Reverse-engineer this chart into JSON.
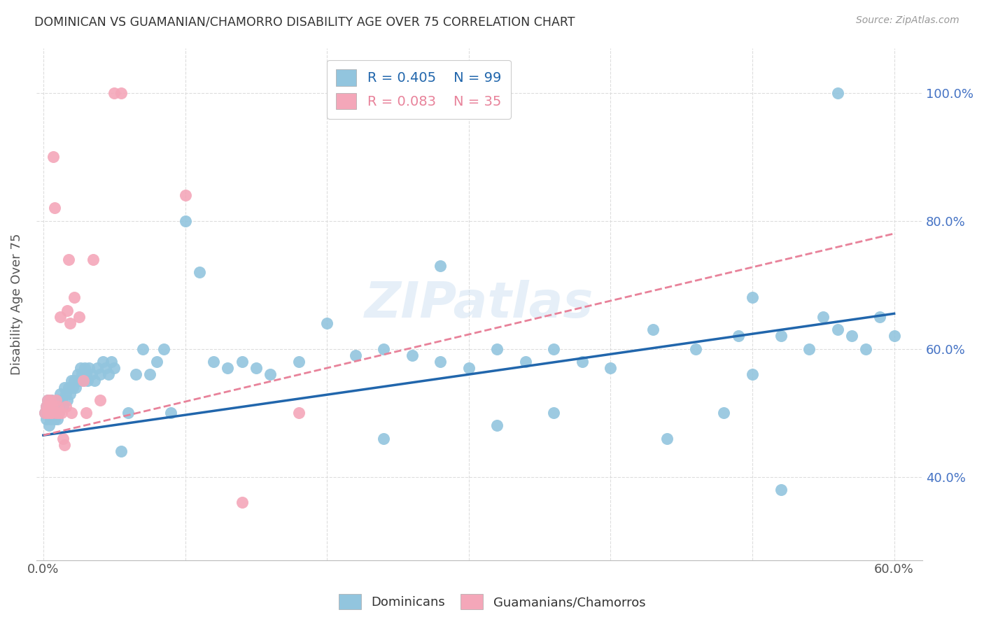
{
  "title": "DOMINICAN VS GUAMANIAN/CHAMORRO DISABILITY AGE OVER 75 CORRELATION CHART",
  "source": "Source: ZipAtlas.com",
  "ylabel": "Disability Age Over 75",
  "xlim": [
    -0.005,
    0.62
  ],
  "ylim": [
    0.27,
    1.07
  ],
  "xtick_pos": [
    0.0,
    0.1,
    0.2,
    0.3,
    0.4,
    0.5,
    0.6
  ],
  "xticklabels": [
    "0.0%",
    "",
    "",
    "",
    "",
    "",
    "60.0%"
  ],
  "ytick_pos": [
    0.4,
    0.6,
    0.8,
    1.0
  ],
  "yticklabels": [
    "40.0%",
    "60.0%",
    "80.0%",
    "100.0%"
  ],
  "blue_color": "#92c5de",
  "pink_color": "#f4a7b9",
  "blue_line_color": "#2166ac",
  "pink_line_color": "#e8829a",
  "watermark": "ZIPatlas",
  "legend_R1": "0.405",
  "legend_N1": "99",
  "legend_R2": "0.083",
  "legend_N2": "35",
  "blue_x": [
    0.001,
    0.002,
    0.002,
    0.003,
    0.003,
    0.004,
    0.004,
    0.005,
    0.005,
    0.006,
    0.006,
    0.007,
    0.007,
    0.008,
    0.008,
    0.009,
    0.009,
    0.01,
    0.01,
    0.011,
    0.011,
    0.012,
    0.013,
    0.014,
    0.015,
    0.016,
    0.017,
    0.018,
    0.019,
    0.02,
    0.021,
    0.022,
    0.023,
    0.024,
    0.025,
    0.026,
    0.027,
    0.028,
    0.029,
    0.03,
    0.031,
    0.032,
    0.034,
    0.036,
    0.038,
    0.04,
    0.042,
    0.044,
    0.046,
    0.048,
    0.05,
    0.055,
    0.06,
    0.065,
    0.07,
    0.075,
    0.08,
    0.085,
    0.09,
    0.1,
    0.11,
    0.12,
    0.13,
    0.14,
    0.15,
    0.16,
    0.18,
    0.2,
    0.22,
    0.24,
    0.26,
    0.28,
    0.3,
    0.32,
    0.34,
    0.36,
    0.38,
    0.4,
    0.43,
    0.46,
    0.49,
    0.5,
    0.52,
    0.54,
    0.55,
    0.56,
    0.57,
    0.58,
    0.59,
    0.6,
    0.28,
    0.32,
    0.24,
    0.36,
    0.44,
    0.48,
    0.5,
    0.52,
    0.56
  ],
  "blue_y": [
    0.5,
    0.49,
    0.51,
    0.5,
    0.52,
    0.48,
    0.5,
    0.5,
    0.49,
    0.51,
    0.52,
    0.5,
    0.5,
    0.49,
    0.51,
    0.5,
    0.5,
    0.52,
    0.49,
    0.51,
    0.5,
    0.53,
    0.52,
    0.51,
    0.54,
    0.53,
    0.52,
    0.54,
    0.53,
    0.55,
    0.54,
    0.55,
    0.54,
    0.56,
    0.55,
    0.57,
    0.56,
    0.55,
    0.57,
    0.56,
    0.55,
    0.57,
    0.56,
    0.55,
    0.57,
    0.56,
    0.58,
    0.57,
    0.56,
    0.58,
    0.57,
    0.44,
    0.5,
    0.56,
    0.6,
    0.56,
    0.58,
    0.6,
    0.5,
    0.8,
    0.72,
    0.58,
    0.57,
    0.58,
    0.57,
    0.56,
    0.58,
    0.64,
    0.59,
    0.6,
    0.59,
    0.58,
    0.57,
    0.6,
    0.58,
    0.6,
    0.58,
    0.57,
    0.63,
    0.6,
    0.62,
    0.68,
    0.62,
    0.6,
    0.65,
    0.63,
    0.62,
    0.6,
    0.65,
    0.62,
    0.73,
    0.48,
    0.46,
    0.5,
    0.46,
    0.5,
    0.56,
    0.38,
    1.0
  ],
  "pink_x": [
    0.001,
    0.002,
    0.003,
    0.003,
    0.004,
    0.005,
    0.005,
    0.006,
    0.006,
    0.007,
    0.008,
    0.009,
    0.009,
    0.01,
    0.011,
    0.012,
    0.013,
    0.014,
    0.015,
    0.016,
    0.017,
    0.018,
    0.019,
    0.02,
    0.022,
    0.025,
    0.028,
    0.03,
    0.035,
    0.04,
    0.05,
    0.055,
    0.1,
    0.14,
    0.18
  ],
  "pink_y": [
    0.5,
    0.51,
    0.5,
    0.52,
    0.51,
    0.52,
    0.5,
    0.51,
    0.5,
    0.9,
    0.82,
    0.52,
    0.5,
    0.51,
    0.5,
    0.65,
    0.5,
    0.46,
    0.45,
    0.51,
    0.66,
    0.74,
    0.64,
    0.5,
    0.68,
    0.65,
    0.55,
    0.5,
    0.74,
    0.52,
    1.0,
    1.0,
    0.84,
    0.36,
    0.5
  ],
  "blue_trendline": [
    0.0,
    0.6,
    0.465,
    0.655
  ],
  "pink_trendline": [
    0.0,
    0.6,
    0.465,
    0.78
  ]
}
